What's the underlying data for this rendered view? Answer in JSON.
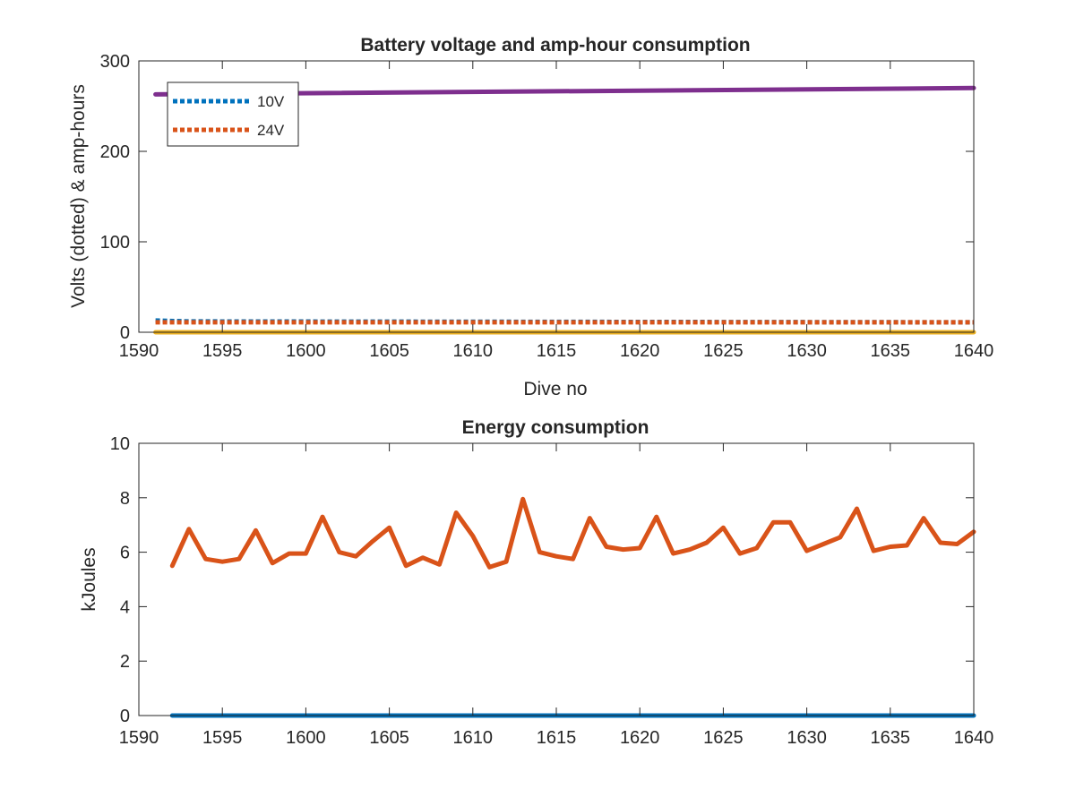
{
  "figure": {
    "background": "#ffffff"
  },
  "chart_data": [
    {
      "type": "line",
      "title": "Battery voltage and amp-hour consumption",
      "xlabel": "Dive no",
      "ylabel": "Volts (dotted) & amp-hours",
      "xlim": [
        1590,
        1640
      ],
      "ylim": [
        0,
        300
      ],
      "xticks": [
        "1590",
        "1595",
        "1600",
        "1605",
        "1610",
        "1615",
        "1620",
        "1625",
        "1630",
        "1635",
        "1640"
      ],
      "yticks": [
        "0",
        "100",
        "200",
        "300"
      ],
      "grid": false,
      "legend": {
        "placement": "top-left",
        "entries": [
          "10V",
          "24V"
        ]
      },
      "series": [
        {
          "name": "10V",
          "color": "#0072BD",
          "style": "dotted",
          "x": [
            1591,
            1593,
            1640
          ],
          "y": [
            13,
            12,
            11
          ]
        },
        {
          "name": "24V",
          "color": "#D95319",
          "style": "dotted",
          "x": [
            1591,
            1640
          ],
          "y": [
            11,
            11
          ]
        },
        {
          "color": "#EDB120",
          "style": "solid",
          "x": [
            1591,
            1640
          ],
          "y": [
            0,
            0
          ]
        },
        {
          "color": "#7E2F8E",
          "style": "solid",
          "x": [
            1591,
            1640
          ],
          "y": [
            263,
            270
          ]
        }
      ]
    },
    {
      "type": "line",
      "title": "Energy consumption",
      "xlabel": "",
      "ylabel": "kJoules",
      "xlim": [
        1590,
        1640
      ],
      "ylim": [
        0,
        10
      ],
      "xticks": [
        "1590",
        "1595",
        "1600",
        "1605",
        "1610",
        "1615",
        "1620",
        "1625",
        "1630",
        "1635",
        "1640"
      ],
      "yticks": [
        "0",
        "2",
        "4",
        "6",
        "8",
        "10"
      ],
      "grid": false,
      "series": [
        {
          "color": "#0072BD",
          "style": "solid",
          "x": [
            1592,
            1640
          ],
          "y": [
            0,
            0
          ]
        },
        {
          "color": "#D95319",
          "style": "solid",
          "x": [
            1592,
            1593,
            1594,
            1595,
            1596,
            1597,
            1598,
            1599,
            1600,
            1601,
            1602,
            1603,
            1604,
            1605,
            1606,
            1607,
            1608,
            1609,
            1610,
            1611,
            1612,
            1613,
            1614,
            1615,
            1616,
            1617,
            1618,
            1619,
            1620,
            1621,
            1622,
            1623,
            1624,
            1625,
            1626,
            1627,
            1628,
            1629,
            1630,
            1631,
            1632,
            1633,
            1634,
            1635,
            1636,
            1637,
            1638,
            1639,
            1640
          ],
          "y": [
            5.5,
            6.85,
            5.75,
            5.65,
            5.75,
            6.8,
            5.6,
            5.95,
            5.95,
            7.3,
            6.0,
            5.85,
            6.4,
            6.9,
            5.5,
            5.8,
            5.55,
            7.45,
            6.6,
            5.45,
            5.65,
            7.95,
            6.0,
            5.85,
            5.75,
            7.25,
            6.2,
            6.1,
            6.15,
            7.3,
            5.95,
            6.1,
            6.35,
            6.9,
            5.95,
            6.15,
            7.1,
            7.1,
            6.05,
            6.3,
            6.55,
            7.6,
            6.05,
            6.2,
            6.25,
            7.25,
            6.35,
            6.3,
            6.75
          ]
        }
      ]
    }
  ]
}
